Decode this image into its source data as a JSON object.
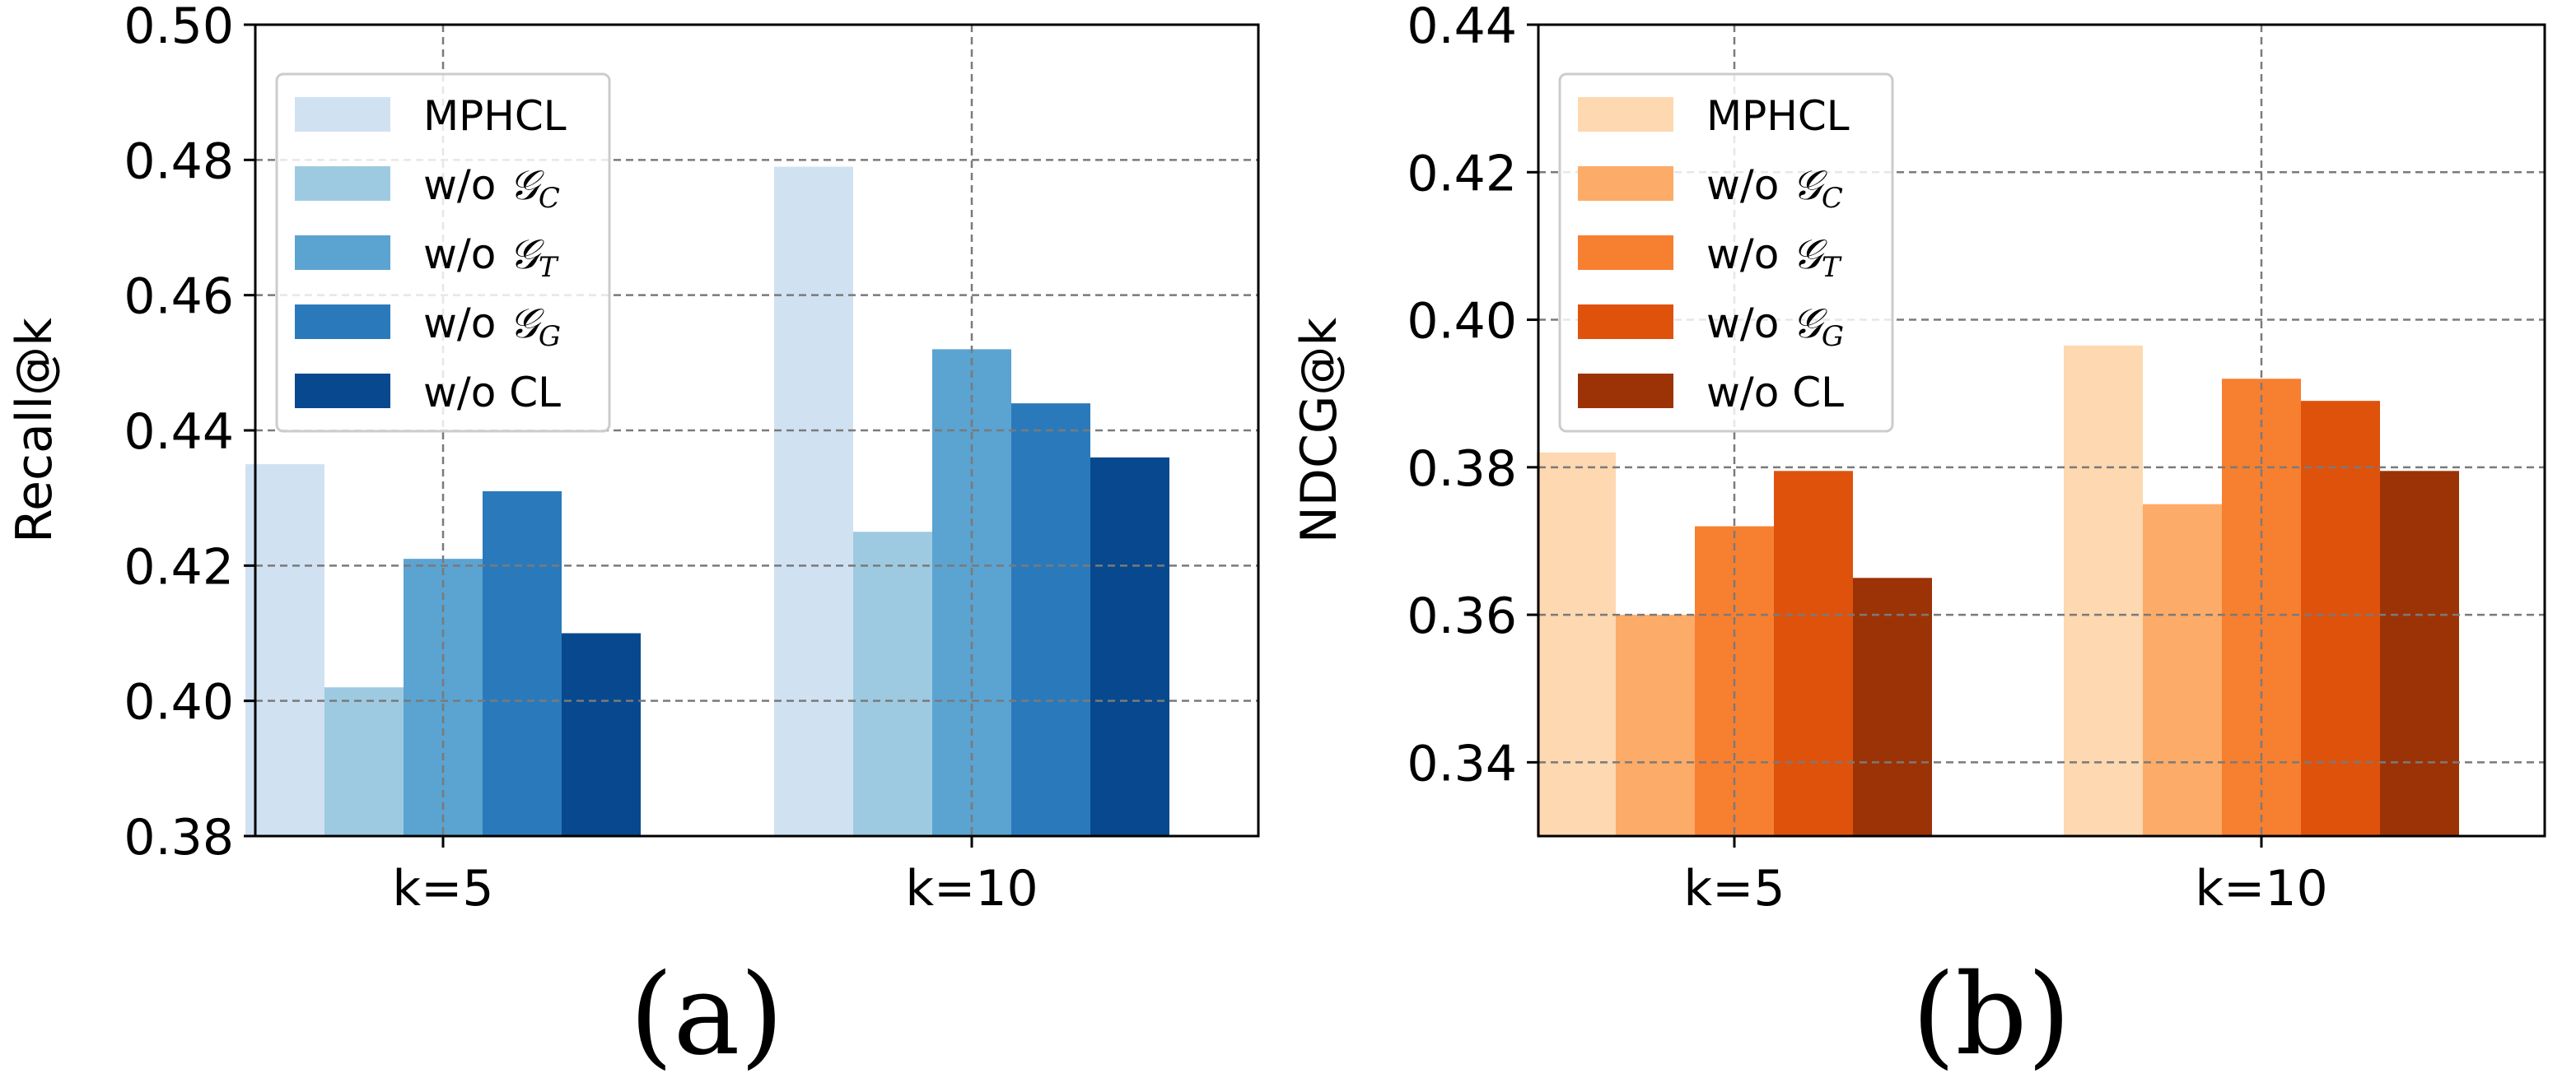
{
  "chart_data": [
    {
      "type": "bar",
      "caption": "(a)",
      "ylabel": "Recall@k",
      "categories": [
        "k=5",
        "k=10"
      ],
      "ylim": [
        0.38,
        0.5
      ],
      "yticks": [
        "0.38",
        "0.40",
        "0.42",
        "0.44",
        "0.46",
        "0.48",
        "0.50"
      ],
      "grid": true,
      "legend_position": "top-left",
      "series": [
        {
          "name": "MPHCL",
          "color": "#d0e1f2",
          "values": [
            0.435,
            0.479
          ]
        },
        {
          "name": "w/o 𝒢",
          "sub": "C",
          "color": "#9ecae1",
          "values": [
            0.402,
            0.425
          ]
        },
        {
          "name": "w/o 𝒢",
          "sub": "T",
          "color": "#5ba3d1",
          "values": [
            0.421,
            0.452
          ]
        },
        {
          "name": "w/o 𝒢",
          "sub": "G",
          "color": "#2a7abb",
          "values": [
            0.431,
            0.444
          ]
        },
        {
          "name": "w/o CL",
          "color": "#08488e",
          "values": [
            0.41,
            0.436
          ]
        }
      ]
    },
    {
      "type": "bar",
      "caption": "(b)",
      "ylabel": "NDCG@k",
      "categories": [
        "k=5",
        "k=10"
      ],
      "ylim": [
        0.33,
        0.44
      ],
      "yticks": [
        "0.34",
        "0.36",
        "0.38",
        "0.40",
        "0.42",
        "0.44"
      ],
      "ytick_values": [
        0.34,
        0.36,
        0.38,
        0.4,
        0.42,
        0.44
      ],
      "grid": true,
      "legend_position": "top-left",
      "series": [
        {
          "name": "MPHCL",
          "color": "#fdd8b0",
          "values": [
            0.382,
            0.3965
          ]
        },
        {
          "name": "w/o 𝒢",
          "sub": "C",
          "color": "#fdab68",
          "values": [
            0.36,
            0.375
          ]
        },
        {
          "name": "w/o 𝒢",
          "sub": "T",
          "color": "#f77f30",
          "values": [
            0.372,
            0.392
          ]
        },
        {
          "name": "w/o 𝒢",
          "sub": "G",
          "color": "#df520c",
          "values": [
            0.3795,
            0.389
          ]
        },
        {
          "name": "w/o CL",
          "color": "#9c3307",
          "values": [
            0.365,
            0.3795
          ]
        }
      ]
    }
  ]
}
